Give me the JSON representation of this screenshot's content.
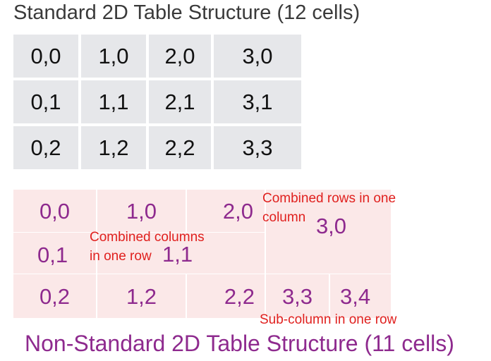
{
  "standard": {
    "title": "Standard 2D Table Structure (12 cells)",
    "cells": [
      [
        "0,0",
        "1,0",
        "2,0",
        "3,0"
      ],
      [
        "0,1",
        "1,1",
        "2,1",
        "3,1"
      ],
      [
        "0,2",
        "1,2",
        "2,2",
        "3,3"
      ]
    ]
  },
  "non_standard": {
    "title": "Non-Standard 2D Table Structure (11 cells)",
    "cells": {
      "c00": "0,0",
      "c10": "1,0",
      "c20": "2,0",
      "c30": "3,0",
      "c01": "0,1",
      "c11": "1,1",
      "c02": "0,2",
      "c12": "1,2",
      "c22": "2,2",
      "c33": "3,3",
      "c34": "3,4"
    }
  },
  "annotations": {
    "combined_rows_line1": "Combined rows in one",
    "combined_rows_line2": "column",
    "combined_cols_line1": "Combined columns",
    "combined_cols_line2": "in one row",
    "sub_column": "Sub-column in one row"
  },
  "colors": {
    "standard_cell_bg": "#e6e7ea",
    "non_standard_cell_bg": "#fbe8e8",
    "non_standard_text": "#8e2a8e",
    "annotation_text": "#e0201e"
  }
}
